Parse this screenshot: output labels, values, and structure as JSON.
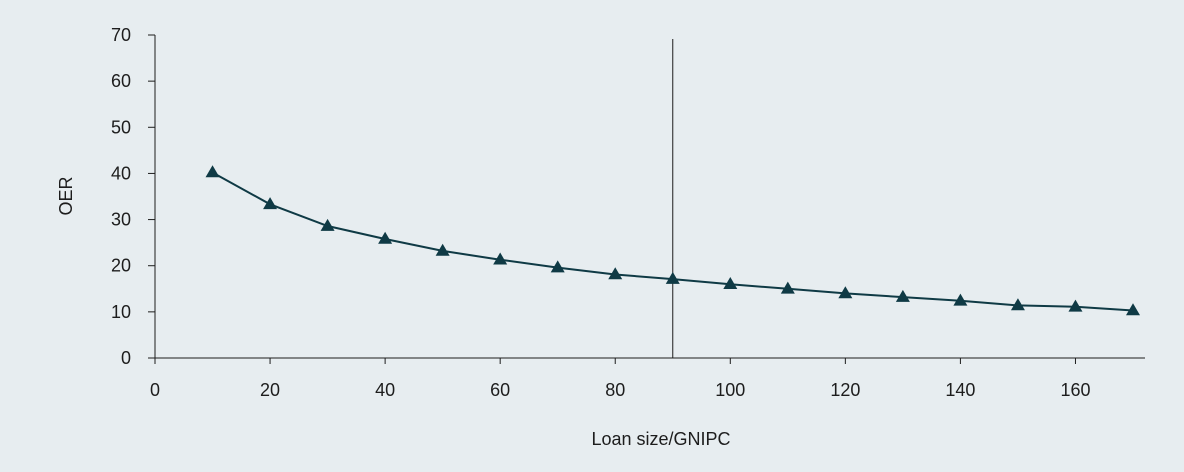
{
  "chart_data": {
    "type": "line",
    "title": "",
    "xlabel": "Loan size/GNIPC",
    "ylabel": "OER",
    "xlim": [
      0,
      170
    ],
    "ylim": [
      0,
      70
    ],
    "x_ticks": [
      "0",
      "20",
      "40",
      "60",
      "80",
      "100",
      "120",
      "140",
      "160"
    ],
    "y_ticks": [
      "0",
      "10",
      "20",
      "30",
      "40",
      "50",
      "60",
      "70"
    ],
    "x_tick_values": [
      0,
      20,
      40,
      60,
      80,
      100,
      120,
      140,
      160
    ],
    "y_tick_values": [
      0,
      10,
      20,
      30,
      40,
      50,
      60,
      70
    ],
    "x": [
      10,
      20,
      30,
      40,
      50,
      60,
      70,
      80,
      90,
      100,
      110,
      120,
      130,
      140,
      150,
      160,
      170
    ],
    "series": [
      {
        "values": [
          40.2,
          33.3,
          28.6,
          25.8,
          23.2,
          21.3,
          19.6,
          18.1,
          17.1,
          16.0,
          15.0,
          14.0,
          13.2,
          12.4,
          11.4,
          11.1,
          10.3
        ],
        "marker": "triangle"
      }
    ],
    "reference_line_x": 90,
    "grid": false,
    "legend": "none",
    "colors": {
      "background": "#e7edf0",
      "series": "#0f3a45",
      "axis": "#1d1d1d"
    }
  }
}
